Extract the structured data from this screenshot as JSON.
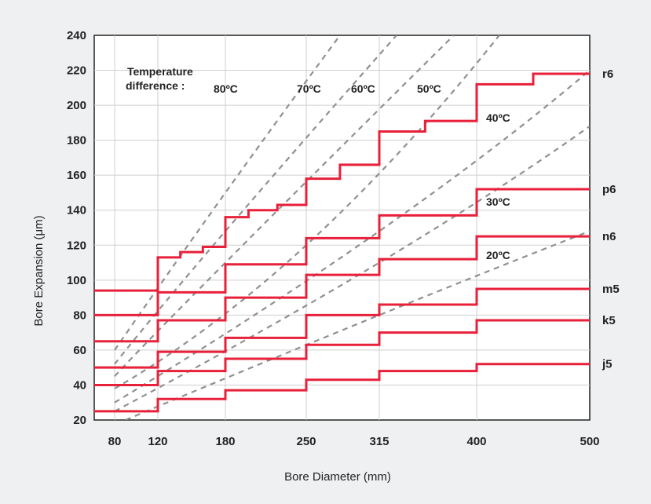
{
  "chart_data": {
    "type": "line",
    "xlabel": "Bore Diameter (mm)",
    "ylabel": "Bore Expansion (μm)",
    "x_ticks": [
      "80",
      "120",
      "180",
      "250",
      "315",
      "400",
      "500"
    ],
    "y_ticks": [
      20,
      40,
      60,
      80,
      100,
      120,
      140,
      160,
      180,
      200,
      220,
      240
    ],
    "ylim": [
      20,
      240
    ],
    "grid": true,
    "temperature_label": [
      "Temperature",
      "difference :"
    ],
    "tolerance_series": [
      {
        "name": "r6",
        "x": [
          "80",
          "120",
          "140",
          "160",
          "180",
          "200",
          "225",
          "250",
          "280",
          "315",
          "355",
          "400",
          "450",
          "500"
        ],
        "values": [
          94,
          113,
          116,
          119,
          136,
          140,
          143,
          158,
          166,
          185,
          191,
          212,
          218,
          218
        ]
      },
      {
        "name": "p6",
        "x": [
          "80",
          "120",
          "180",
          "250",
          "315",
          "400",
          "500"
        ],
        "values": [
          80,
          93,
          109,
          124,
          137,
          152,
          152
        ]
      },
      {
        "name": "n6",
        "x": [
          "80",
          "120",
          "180",
          "250",
          "315",
          "400",
          "500"
        ],
        "values": [
          65,
          77,
          90,
          103,
          112,
          125,
          125
        ]
      },
      {
        "name": "m5",
        "x": [
          "80",
          "120",
          "180",
          "250",
          "315",
          "400",
          "500"
        ],
        "values": [
          50,
          59,
          67,
          80,
          86,
          95,
          95
        ]
      },
      {
        "name": "k5",
        "x": [
          "80",
          "120",
          "180",
          "250",
          "315",
          "400",
          "500"
        ],
        "values": [
          40,
          48,
          55,
          63,
          70,
          77,
          77
        ]
      },
      {
        "name": "j5",
        "x": [
          "80",
          "120",
          "180",
          "250",
          "315",
          "400",
          "500"
        ],
        "values": [
          25,
          32,
          37,
          43,
          48,
          52,
          52
        ]
      }
    ],
    "temperature_lines": [
      {
        "name": "80ºC",
        "points": [
          [
            80,
            60
          ],
          [
            180,
            150
          ],
          [
            280,
            240
          ]
        ]
      },
      {
        "name": "70ºC",
        "points": [
          [
            80,
            52
          ],
          [
            180,
            128
          ],
          [
            330,
            240
          ]
        ]
      },
      {
        "name": "60ºC",
        "points": [
          [
            80,
            45
          ],
          [
            180,
            110
          ],
          [
            380,
            240
          ]
        ]
      },
      {
        "name": "50ºC",
        "points": [
          [
            80,
            38
          ],
          [
            250,
            120
          ],
          [
            420,
            240
          ]
        ]
      },
      {
        "name": "40ºC",
        "points": [
          [
            80,
            30
          ],
          [
            315,
            128
          ],
          [
            500,
            220
          ]
        ]
      },
      {
        "name": "30ºC",
        "points": [
          [
            80,
            25
          ],
          [
            315,
            110
          ],
          [
            500,
            188
          ]
        ]
      },
      {
        "name": "20ºC",
        "points": [
          [
            90,
            20
          ],
          [
            315,
            80
          ],
          [
            500,
            128
          ]
        ]
      }
    ]
  },
  "colors": {
    "tolerance": "#e8203a",
    "temperature": "#909090",
    "grid": "#cfcfcf",
    "background": "#eef0f2"
  }
}
